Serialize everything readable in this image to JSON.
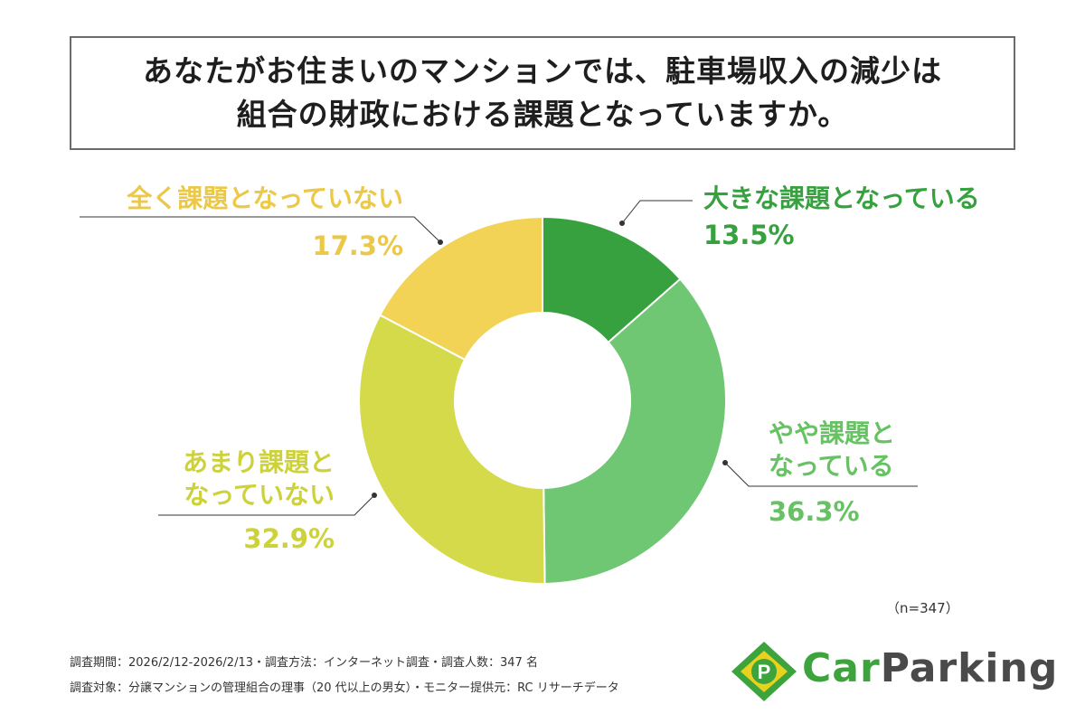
{
  "title": {
    "line1": "あなたがお住まいのマンションでは、駐車場収入の減少は",
    "line2": "組合の財政における課題となっていますか。"
  },
  "chart_data": {
    "type": "pie",
    "donut": true,
    "title": "あなたがお住まいのマンションでは、駐車場収入の減少は組合の財政における課題となっていますか。",
    "sample_size": "（n=347）",
    "slices": [
      {
        "label": "大きな課題となっている",
        "label_lines": [
          "大きな課題となっている"
        ],
        "value": 13.5,
        "display": "13.5%",
        "color": "#37a13f"
      },
      {
        "label": "やや課題となっている",
        "label_lines": [
          "やや課題と",
          "なっている"
        ],
        "value": 36.3,
        "display": "36.3%",
        "color": "#6fc673"
      },
      {
        "label": "あまり課題となっていない",
        "label_lines": [
          "あまり課題と",
          "なっていない"
        ],
        "value": 32.9,
        "display": "32.9%",
        "color": "#d5da4a"
      },
      {
        "label": "全く課題となっていない",
        "label_lines": [
          "全く課題となっていない"
        ],
        "value": 17.3,
        "display": "17.3%",
        "color": "#f2d356"
      }
    ]
  },
  "footer": {
    "line1": "調査期間：2026/2/12-2026/2/13・調査方法：インターネット調査・調査人数：347 名",
    "line2": "調査対象：分譲マンションの管理組合の理事（20 代以上の男女）・モニター提供元：RC リサーチデータ"
  },
  "logo": {
    "mark": "P",
    "text_car": "Car",
    "text_parking": "Parking",
    "colors": {
      "green": "#3da33c",
      "yellow": "#e8d21f",
      "gray": "#4a4a4a"
    }
  }
}
